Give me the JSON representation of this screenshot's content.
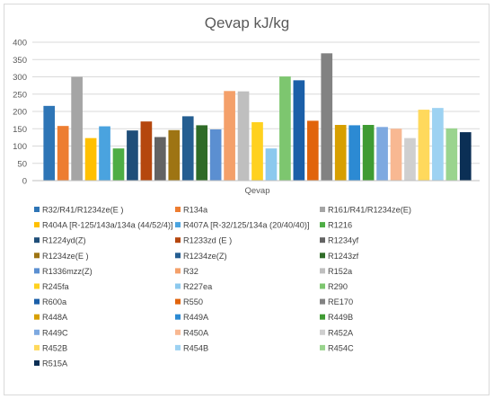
{
  "chart_data": {
    "type": "bar",
    "title": "Qevap kJ/kg",
    "categories": [
      "Qevap"
    ],
    "xlabel": "",
    "ylabel": "",
    "ylim": [
      0,
      400
    ],
    "yticks": [
      0,
      50,
      100,
      150,
      200,
      250,
      300,
      350,
      400
    ],
    "grid": true,
    "legend_position": "bottom",
    "series": [
      {
        "name": "R32/R41/R1234ze(E )",
        "values": [
          216
        ],
        "color": "#2e75b6"
      },
      {
        "name": "R134a",
        "values": [
          158
        ],
        "color": "#ed7d31"
      },
      {
        "name": "R161/R41/R1234ze(E)",
        "values": [
          300
        ],
        "color": "#a5a5a5"
      },
      {
        "name": "R404A [R-125/143a/134a (44/52/4)]",
        "values": [
          123
        ],
        "color": "#ffc000"
      },
      {
        "name": "R407A [R-32/125/134a (20/40/40)]",
        "values": [
          157
        ],
        "color": "#4aa3df"
      },
      {
        "name": "R1216",
        "values": [
          93
        ],
        "color": "#4ead45"
      },
      {
        "name": "R1224yd(Z)",
        "values": [
          145
        ],
        "color": "#1f4e79"
      },
      {
        "name": "R1233zd (E )",
        "values": [
          171
        ],
        "color": "#b5470e"
      },
      {
        "name": "R1234yf",
        "values": [
          126
        ],
        "color": "#636363"
      },
      {
        "name": "R1234ze(E )",
        "values": [
          146
        ],
        "color": "#9e7413"
      },
      {
        "name": "R1234ze(Z)",
        "values": [
          186
        ],
        "color": "#255e91"
      },
      {
        "name": "R1243zf",
        "values": [
          160
        ],
        "color": "#2f6b27"
      },
      {
        "name": "R1336mzz(Z)",
        "values": [
          148
        ],
        "color": "#5b8fd1"
      },
      {
        "name": "R32",
        "values": [
          259
        ],
        "color": "#f4a06a"
      },
      {
        "name": "R152a",
        "values": [
          258
        ],
        "color": "#bfbfbf"
      },
      {
        "name": "R245fa",
        "values": [
          169
        ],
        "color": "#ffd11f"
      },
      {
        "name": "R227ea",
        "values": [
          93
        ],
        "color": "#8cc9ee"
      },
      {
        "name": "R290",
        "values": [
          301
        ],
        "color": "#7dc66f"
      },
      {
        "name": "R600a",
        "values": [
          290
        ],
        "color": "#1b5fa8"
      },
      {
        "name": "R550",
        "values": [
          173
        ],
        "color": "#e1640c"
      },
      {
        "name": "RE170",
        "values": [
          368
        ],
        "color": "#828282"
      },
      {
        "name": "R448A",
        "values": [
          161
        ],
        "color": "#d79f00"
      },
      {
        "name": "R449A",
        "values": [
          160
        ],
        "color": "#2c8ad3"
      },
      {
        "name": "R449B",
        "values": [
          161
        ],
        "color": "#3f9b33"
      },
      {
        "name": "R449C",
        "values": [
          155
        ],
        "color": "#7ea9e0"
      },
      {
        "name": "R450A",
        "values": [
          150
        ],
        "color": "#f8b892"
      },
      {
        "name": "R452A",
        "values": [
          123
        ],
        "color": "#cfcfcf"
      },
      {
        "name": "R452B",
        "values": [
          205
        ],
        "color": "#ffd95c"
      },
      {
        "name": "R454B",
        "values": [
          210
        ],
        "color": "#9dd2f2"
      },
      {
        "name": "R454C",
        "values": [
          151
        ],
        "color": "#9ad48e"
      },
      {
        "name": "R515A",
        "values": [
          140
        ],
        "color": "#0b2f55"
      }
    ]
  }
}
